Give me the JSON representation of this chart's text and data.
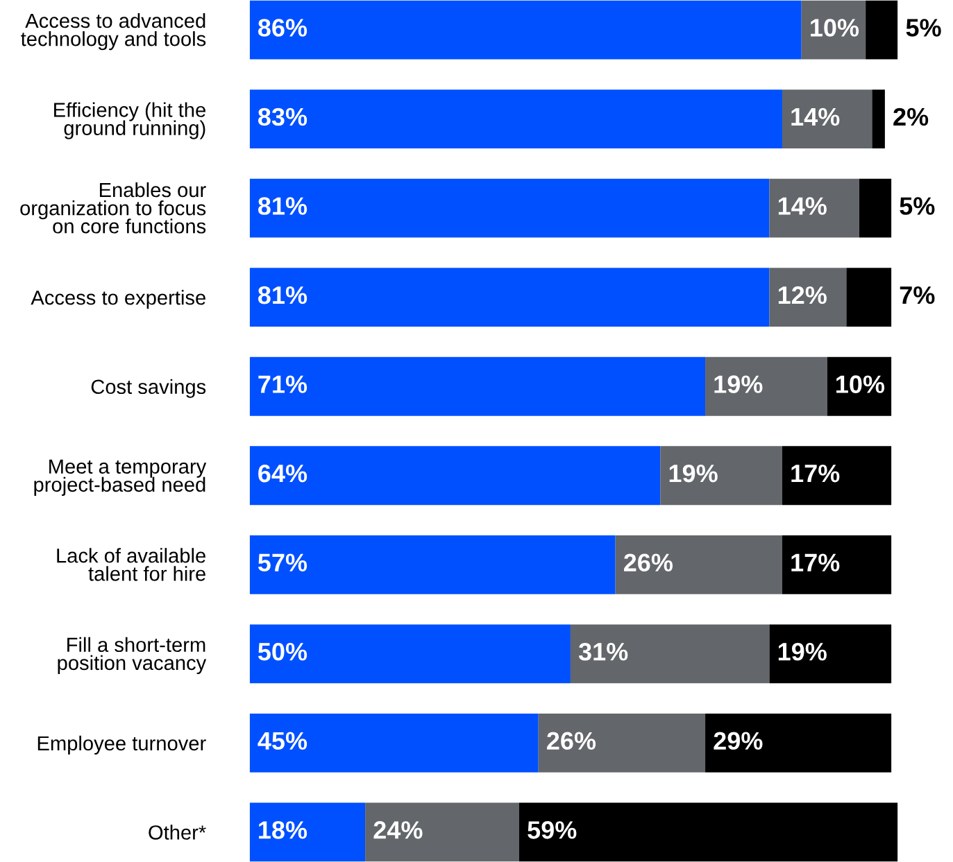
{
  "chart_data": {
    "type": "bar",
    "orientation": "horizontal",
    "stacked": true,
    "tick_labels": "y",
    "grid": false,
    "categories": [
      "Access to advanced\ntechnology and tools",
      "Efficiency (hit the\nground running)",
      "Enables our\norganization to focus\non core functions",
      "Access to expertise",
      "Cost savings",
      "Meet a temporary\nproject-based need",
      "Lack of available\ntalent for hire",
      "Fill a short-term\nposition vacancy",
      "Employee turnover",
      "Other*"
    ],
    "series": [
      {
        "color": "#0050ff",
        "values": [
          86,
          83,
          81,
          81,
          71,
          64,
          57,
          50,
          45,
          18
        ],
        "value_labels": [
          "86%",
          "83%",
          "81%",
          "81%",
          "71%",
          "64%",
          "57%",
          "50%",
          "45%",
          "18%"
        ]
      },
      {
        "color": "#63666a",
        "values": [
          10,
          14,
          14,
          12,
          19,
          19,
          26,
          31,
          26,
          24
        ],
        "value_labels": [
          "10%",
          "14%",
          "14%",
          "12%",
          "19%",
          "19%",
          "26%",
          "31%",
          "26%",
          "24%"
        ]
      },
      {
        "color": "#000000",
        "values": [
          5,
          2,
          5,
          7,
          10,
          17,
          17,
          19,
          29,
          59
        ],
        "value_labels": [
          "5%",
          "2%",
          "5%",
          "7%",
          "10%",
          "17%",
          "17%",
          "19%",
          "29%",
          "59%"
        ]
      }
    ]
  }
}
